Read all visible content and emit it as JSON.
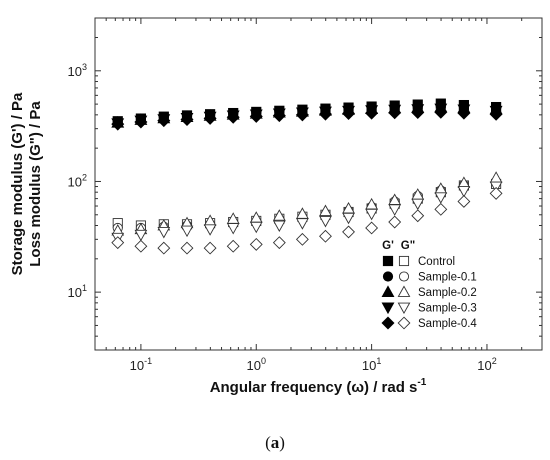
{
  "chart_data": {
    "type": "scatter",
    "xscale": "log",
    "yscale": "log",
    "xlim": [
      0.04,
      300
    ],
    "ylim": [
      3,
      3000
    ],
    "xlabel": "Angular frequency (ω) / rad s",
    "xlabel_sup": "-1",
    "ylabel_line1": "Storage modulus (G') / Pa",
    "ylabel_line2": "Loss modulus (G\") / Pa",
    "x_ticks": [
      {
        "value": 0.1,
        "base": "10",
        "exp": "-1"
      },
      {
        "value": 1,
        "base": "10",
        "exp": "0"
      },
      {
        "value": 10,
        "base": "10",
        "exp": "1"
      },
      {
        "value": 100,
        "base": "10",
        "exp": "2"
      }
    ],
    "y_ticks": [
      {
        "value": 10,
        "base": "10",
        "exp": "1"
      },
      {
        "value": 100,
        "base": "10",
        "exp": "2"
      },
      {
        "value": 1000,
        "base": "10",
        "exp": "3"
      }
    ],
    "legend": {
      "position": "bottom-right",
      "header_filled": "G'",
      "header_open": "G\""
    },
    "x": [
      0.063,
      0.1,
      0.158,
      0.251,
      0.398,
      0.631,
      1.0,
      1.585,
      2.512,
      3.981,
      6.31,
      10.0,
      15.85,
      25.12,
      39.81,
      63.1,
      120.0
    ],
    "series": [
      {
        "name": "Control",
        "marker": "square",
        "G_storage": [
          350,
          370,
          385,
          395,
          405,
          415,
          425,
          435,
          445,
          455,
          465,
          475,
          485,
          495,
          505,
          490,
          470
        ],
        "G_loss": [
          42,
          40,
          41,
          41,
          42,
          43,
          44,
          46,
          48,
          50,
          53,
          57,
          63,
          70,
          80,
          92,
          95
        ]
      },
      {
        "name": "Sample-0.1",
        "marker": "circle",
        "G_storage": [
          345,
          365,
          380,
          390,
          400,
          410,
          418,
          428,
          437,
          446,
          455,
          463,
          470,
          478,
          485,
          475,
          460
        ],
        "G_loss": [
          38,
          38,
          39,
          40,
          41,
          42,
          43,
          45,
          47,
          50,
          54,
          59,
          66,
          74,
          83,
          93,
          98
        ]
      },
      {
        "name": "Sample-0.2",
        "marker": "triangle-up",
        "G_storage": [
          340,
          360,
          372,
          382,
          392,
          402,
          410,
          420,
          428,
          437,
          445,
          452,
          458,
          465,
          470,
          462,
          450
        ],
        "G_loss": [
          36,
          37,
          40,
          42,
          44,
          46,
          47,
          49,
          51,
          54,
          57,
          62,
          68,
          76,
          86,
          97,
          108
        ]
      },
      {
        "name": "Sample-0.3",
        "marker": "triangle-down",
        "G_storage": [
          335,
          355,
          365,
          375,
          385,
          395,
          403,
          412,
          420,
          428,
          435,
          440,
          445,
          450,
          455,
          447,
          435
        ],
        "G_loss": [
          31,
          33,
          35,
          36,
          37,
          38,
          39,
          40,
          42,
          44,
          47,
          51,
          56,
          63,
          72,
          82,
          90
        ]
      },
      {
        "name": "Sample-0.4",
        "marker": "diamond",
        "G_storage": [
          330,
          345,
          355,
          363,
          372,
          380,
          387,
          394,
          400,
          406,
          411,
          415,
          418,
          420,
          422,
          415,
          405
        ],
        "G_loss": [
          28,
          26,
          25,
          25,
          25,
          26,
          27,
          28,
          30,
          32,
          35,
          38,
          43,
          49,
          56,
          66,
          78
        ]
      }
    ]
  },
  "caption": {
    "open": "(",
    "letter": "a",
    "close": ")"
  }
}
